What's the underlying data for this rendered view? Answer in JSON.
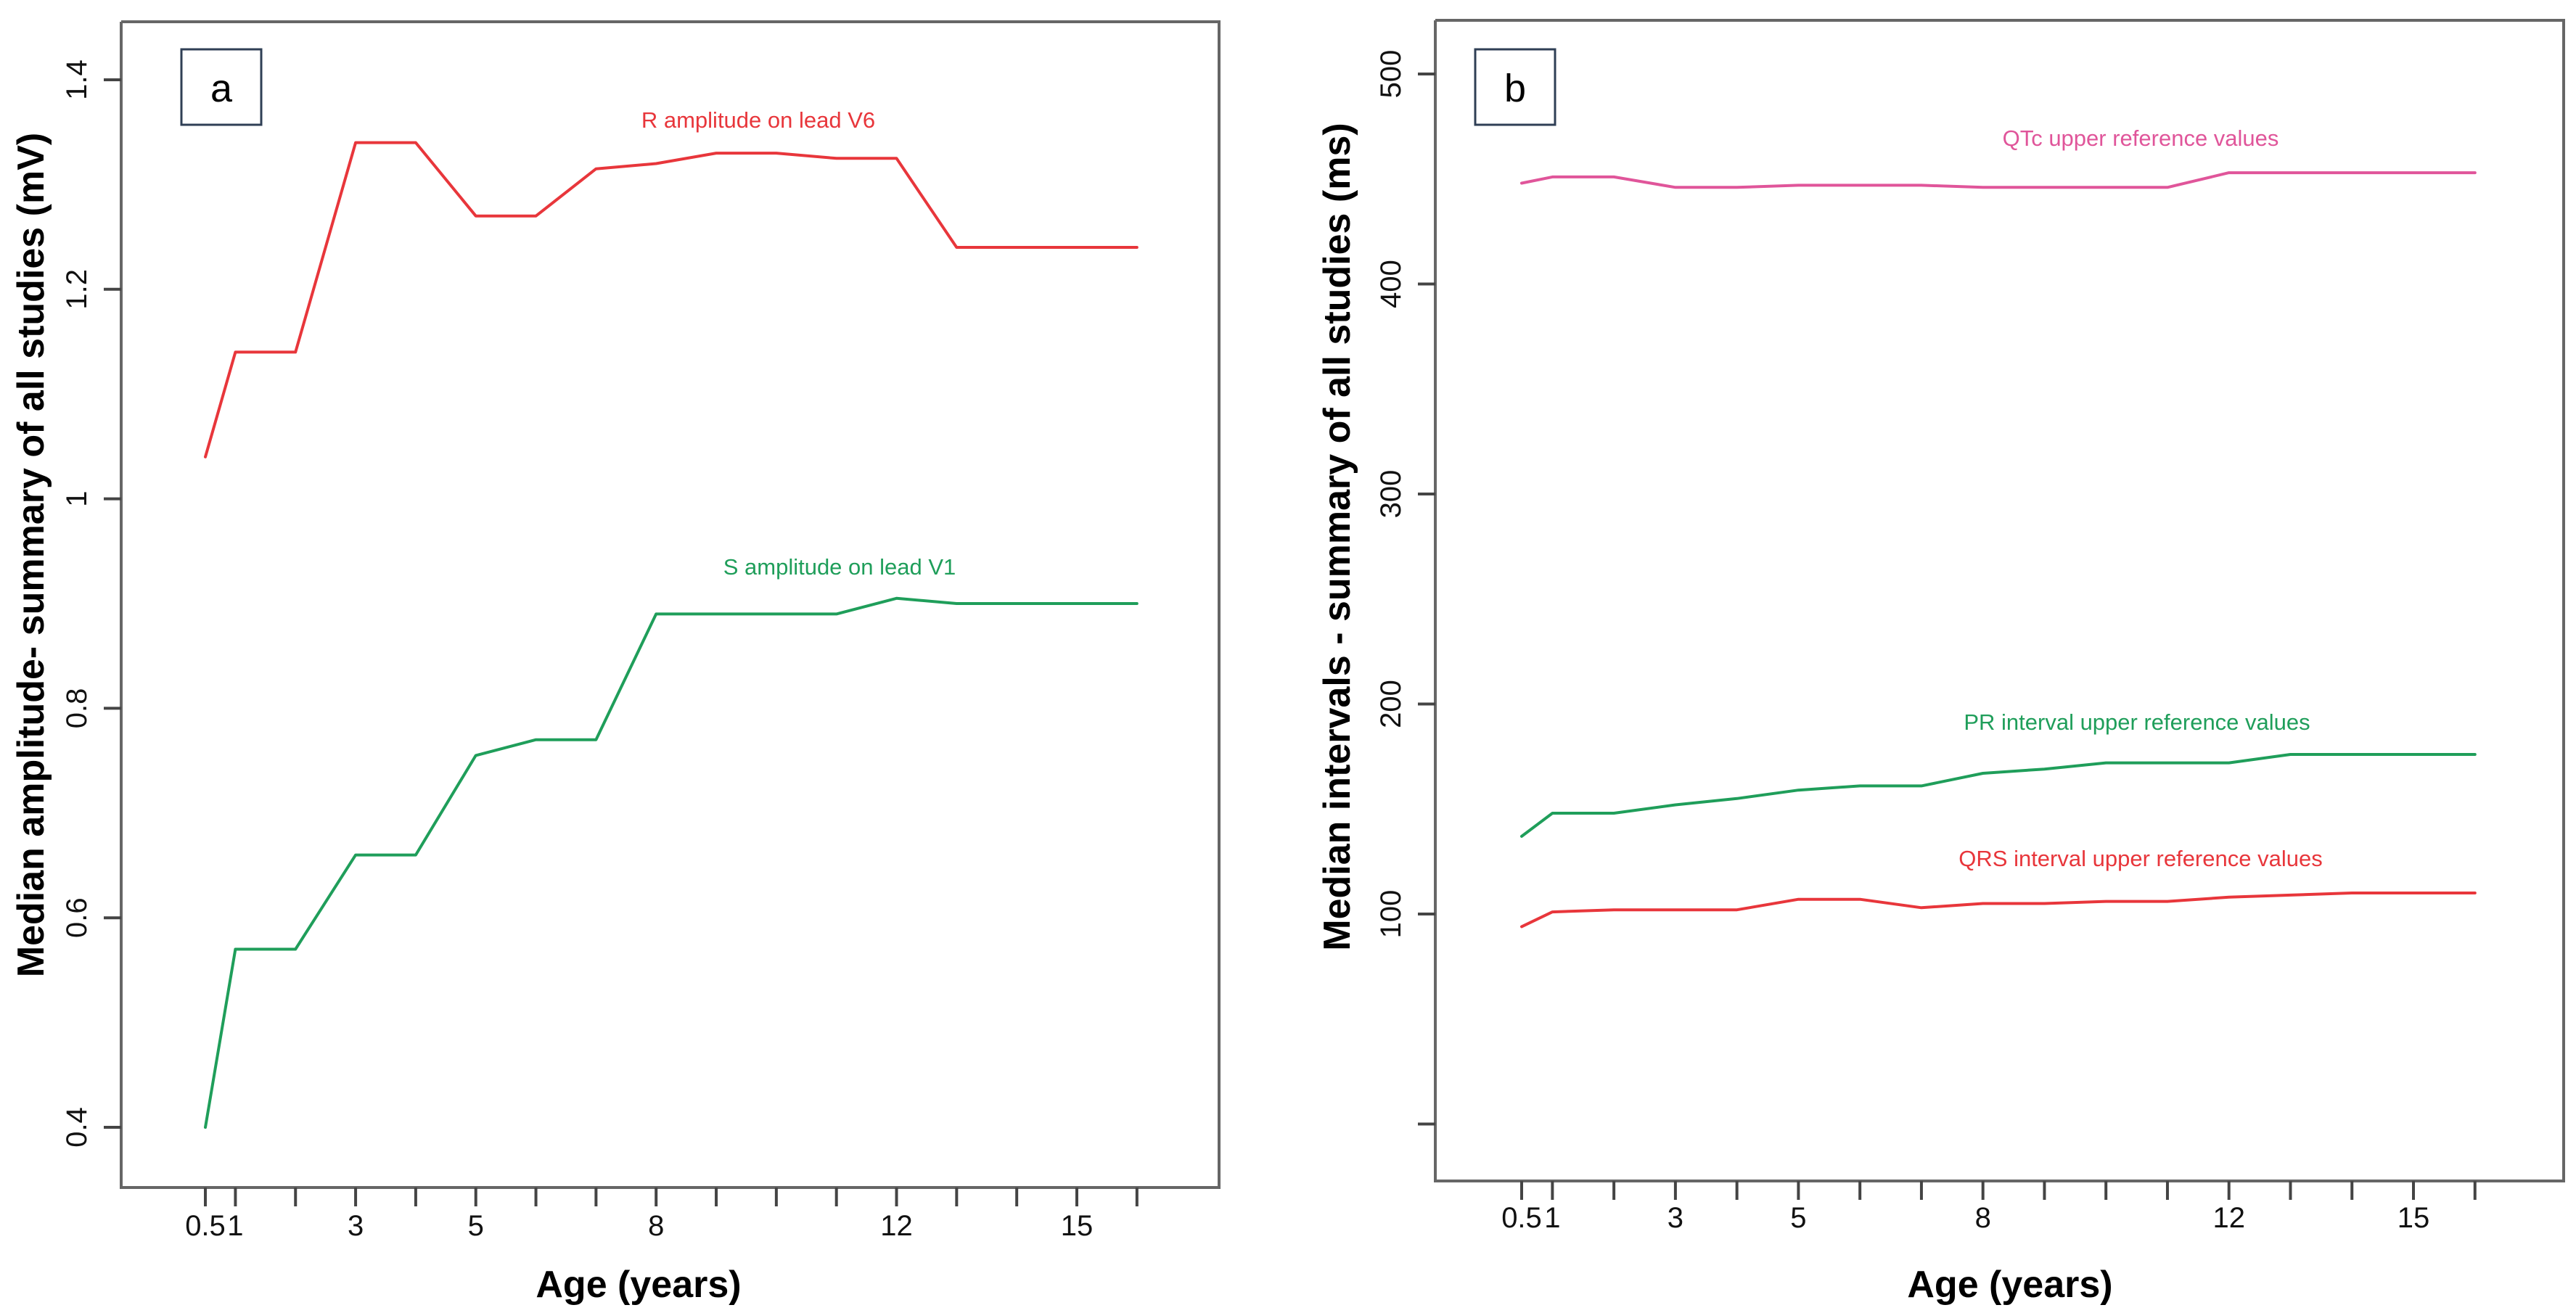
{
  "chart_data": [
    {
      "type": "line",
      "panel_label": "a",
      "xlabel": "Age (years)",
      "ylabel": "Median amplitude- summary of all studies (mV)",
      "xlim": [
        0.5,
        16
      ],
      "ylim": [
        0.4,
        1.4
      ],
      "x_ticks": [
        0.5,
        1,
        3,
        5,
        8,
        12,
        15
      ],
      "y_ticks": [
        0.4,
        0.6,
        0.8,
        1,
        1.2,
        1.4
      ],
      "y_tick_labels": [
        "0.4",
        "0.6",
        "0.8",
        "1",
        "1.2",
        "1.4"
      ],
      "series": [
        {
          "name": "R amplitude on lead V6",
          "color": "#e8363b",
          "x": [
            0.5,
            1,
            2,
            3,
            4,
            5,
            6,
            7,
            8,
            9,
            10,
            11,
            12,
            13,
            14,
            15,
            16
          ],
          "values": [
            1.04,
            1.14,
            1.14,
            1.34,
            1.34,
            1.27,
            1.27,
            1.315,
            1.32,
            1.33,
            1.33,
            1.325,
            1.325,
            1.24,
            1.24,
            1.24,
            1.24
          ]
        },
        {
          "name": "S amplitude on lead V1",
          "color": "#1f9e5a",
          "x": [
            0.5,
            1,
            2,
            3,
            4,
            5,
            6,
            7,
            8,
            9,
            10,
            11,
            12,
            13,
            14,
            15,
            16
          ],
          "values": [
            0.4,
            0.57,
            0.57,
            0.66,
            0.66,
            0.755,
            0.77,
            0.77,
            0.89,
            0.89,
            0.89,
            0.89,
            0.905,
            0.9,
            0.9,
            0.9,
            0.9
          ]
        }
      ]
    },
    {
      "type": "line",
      "panel_label": "b",
      "xlabel": "Age (years)",
      "ylabel": "Median intervals - summary of all studies (ms)",
      "xlim": [
        0.5,
        16
      ],
      "ylim": [
        0,
        500
      ],
      "x_ticks": [
        0.5,
        1,
        3,
        5,
        8,
        12,
        15
      ],
      "y_ticks": [
        100,
        200,
        300,
        400,
        500
      ],
      "y_tick_labels": [
        "100",
        "200",
        "300",
        "400",
        "500"
      ],
      "series": [
        {
          "name": "QTc upper reference values",
          "color": "#e0559a",
          "x": [
            0.5,
            1,
            2,
            3,
            4,
            5,
            6,
            7,
            8,
            9,
            10,
            11,
            12,
            13,
            14,
            15,
            16
          ],
          "values": [
            448,
            451,
            451,
            446,
            446,
            447,
            447,
            447,
            446,
            446,
            446,
            446,
            453,
            453,
            453,
            453,
            453
          ]
        },
        {
          "name": "PR interval upper reference values",
          "color": "#1f9e5a",
          "x": [
            0.5,
            1,
            2,
            3,
            4,
            5,
            6,
            7,
            8,
            9,
            10,
            11,
            12,
            13,
            14,
            15,
            16
          ],
          "values": [
            137,
            148,
            148,
            152,
            155,
            159,
            161,
            161,
            167,
            169,
            172,
            172,
            172,
            176,
            176,
            176,
            176
          ]
        },
        {
          "name": "QRS interval upper reference values",
          "color": "#e8363b",
          "x": [
            0.5,
            1,
            2,
            3,
            4,
            5,
            6,
            7,
            8,
            9,
            10,
            11,
            12,
            13,
            14,
            15,
            16
          ],
          "values": [
            94,
            101,
            102,
            102,
            102,
            107,
            107,
            103,
            105,
            105,
            106,
            106,
            108,
            109,
            110,
            110,
            110
          ]
        }
      ]
    }
  ]
}
